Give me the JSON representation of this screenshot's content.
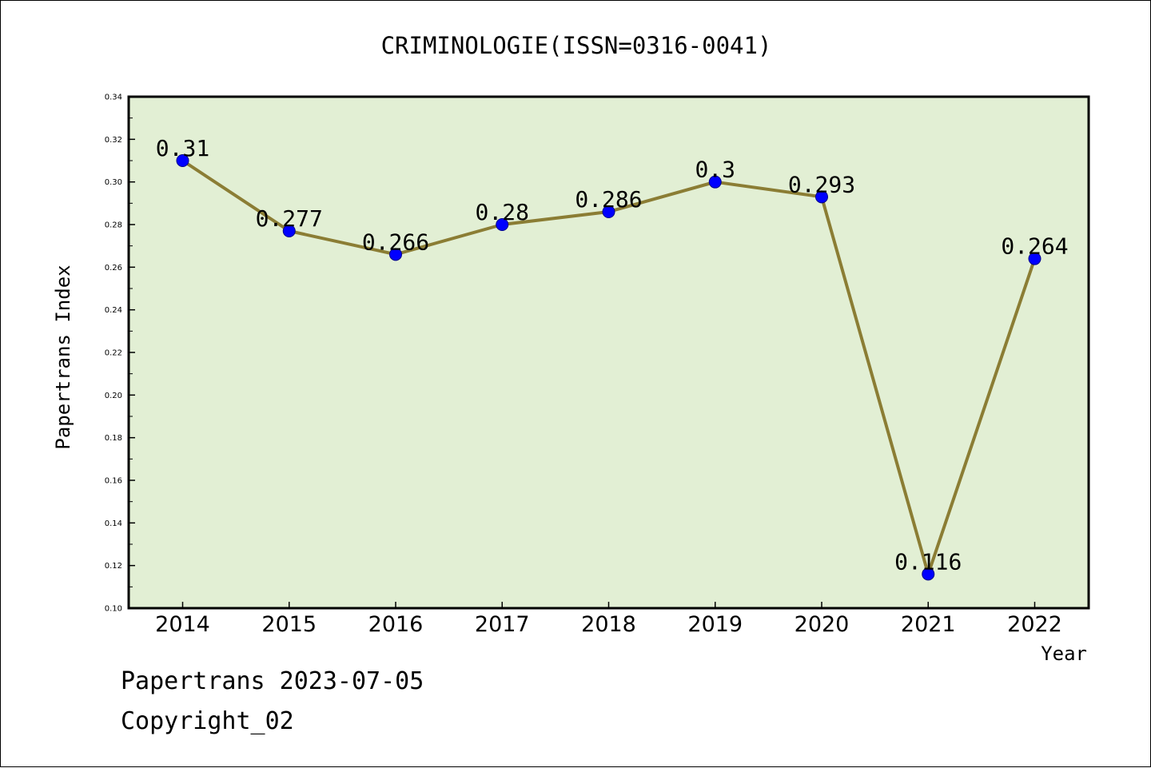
{
  "chart_data": {
    "type": "line",
    "title": "CRIMINOLOGIE(ISSN=0316-0041)",
    "xlabel": "Year",
    "ylabel": "Papertrans Index",
    "categories": [
      "2014",
      "2015",
      "2016",
      "2017",
      "2018",
      "2019",
      "2020",
      "2021",
      "2022"
    ],
    "series": [
      {
        "values": [
          0.31,
          0.277,
          0.266,
          0.28,
          0.286,
          0.3,
          0.293,
          0.116,
          0.264
        ]
      }
    ],
    "data_labels": [
      "0.31",
      "0.277",
      "0.266",
      "0.28",
      "0.286",
      "0.3",
      "0.293",
      "0.116",
      "0.264"
    ],
    "ylim": [
      0.1,
      0.34
    ],
    "yticks": [
      "0.10",
      "0.12",
      "0.14",
      "0.16",
      "0.18",
      "0.20",
      "0.22",
      "0.24",
      "0.26",
      "0.28",
      "0.30",
      "0.32",
      "0.34"
    ],
    "grid": false,
    "legend": "none",
    "colors": {
      "plot_background": "#e2efd4",
      "line": "#8b7d34",
      "marker": "#0000ff",
      "marker_edge": "#00008b",
      "axis": "#000000"
    }
  },
  "footer": {
    "date_line": "Papertrans 2023-07-05",
    "copyright_line": "Copyright_02"
  }
}
